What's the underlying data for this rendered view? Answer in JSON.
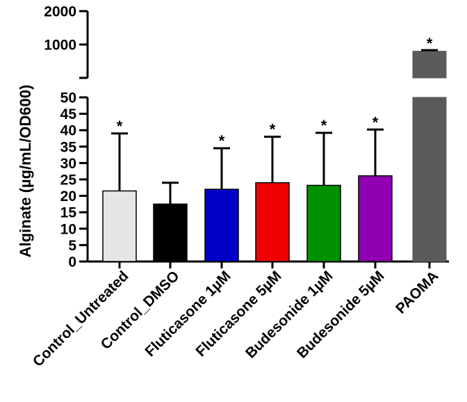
{
  "chart_data": {
    "type": "bar",
    "title": "",
    "xlabel": "",
    "ylabel": "Alginate (µg/mL/OD600)",
    "categories": [
      "Control_Untreated",
      "Control_DMSO",
      "Fluticasone 1µM",
      "Fluticasone 5µM",
      "Budesonide 1µM",
      "Budesonide 5µM",
      "PAOMA"
    ],
    "values": [
      21.5,
      17.5,
      22,
      24,
      23.2,
      26.1,
      800
    ],
    "error_upper": [
      39,
      24,
      34.5,
      38,
      39.2,
      40.2,
      830
    ],
    "significance": [
      "*",
      "",
      "*",
      "*",
      "*",
      "*",
      "*"
    ],
    "colors": [
      "#e6e6e6",
      "#000000",
      "#0000c8",
      "#ee0000",
      "#009000",
      "#9000b0",
      "#5a5a5a"
    ],
    "y_axis_segments": [
      {
        "range": [
          0,
          50
        ],
        "ticks": [
          0,
          5,
          10,
          15,
          20,
          25,
          30,
          35,
          40,
          45,
          50
        ]
      },
      {
        "range": [
          0,
          2000
        ],
        "ticks": [
          1000,
          2000
        ]
      }
    ],
    "tick_labels_lower": [
      "0",
      "5",
      "10",
      "15",
      "20",
      "25",
      "30",
      "35",
      "40",
      "45",
      "50"
    ],
    "tick_labels_upper": [
      "1000",
      "2000"
    ]
  }
}
